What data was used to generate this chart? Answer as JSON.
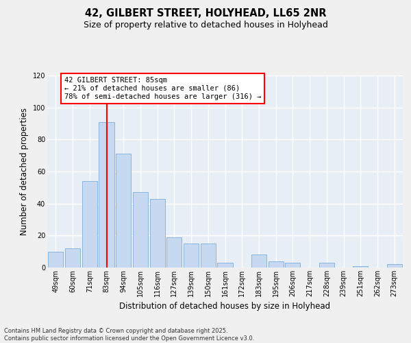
{
  "title": "42, GILBERT STREET, HOLYHEAD, LL65 2NR",
  "subtitle": "Size of property relative to detached houses in Holyhead",
  "xlabel": "Distribution of detached houses by size in Holyhead",
  "ylabel": "Number of detached properties",
  "categories": [
    "49sqm",
    "60sqm",
    "71sqm",
    "83sqm",
    "94sqm",
    "105sqm",
    "116sqm",
    "127sqm",
    "139sqm",
    "150sqm",
    "161sqm",
    "172sqm",
    "183sqm",
    "195sqm",
    "206sqm",
    "217sqm",
    "228sqm",
    "239sqm",
    "251sqm",
    "262sqm",
    "273sqm"
  ],
  "values": [
    10,
    12,
    54,
    91,
    71,
    47,
    43,
    19,
    15,
    15,
    3,
    0,
    8,
    4,
    3,
    0,
    3,
    0,
    1,
    0,
    2
  ],
  "bar_color": "#c6d9f0",
  "bar_edge_color": "#7aaddb",
  "vline_index": 3,
  "vline_color": "red",
  "annotation_line1": "42 GILBERT STREET: 85sqm",
  "annotation_line2": "← 21% of detached houses are smaller (86)",
  "annotation_line3": "78% of semi-detached houses are larger (316) →",
  "ylim": [
    0,
    120
  ],
  "yticks": [
    0,
    20,
    40,
    60,
    80,
    100,
    120
  ],
  "plot_bg_color": "#e8eef5",
  "fig_bg_color": "#f0f0f0",
  "grid_color": "white",
  "footer_line1": "Contains HM Land Registry data © Crown copyright and database right 2025.",
  "footer_line2": "Contains public sector information licensed under the Open Government Licence v3.0.",
  "title_fontsize": 10.5,
  "subtitle_fontsize": 9,
  "axis_label_fontsize": 8.5,
  "tick_fontsize": 7,
  "annot_fontsize": 7.5
}
